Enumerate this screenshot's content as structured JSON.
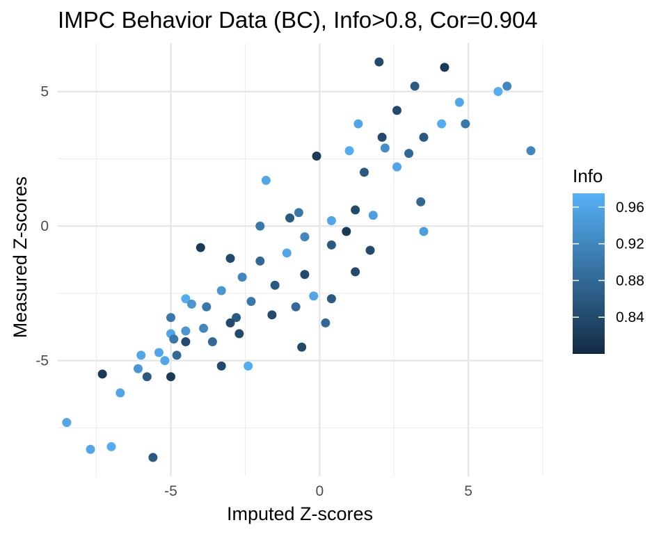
{
  "chart_data": {
    "type": "scatter",
    "title": "IMPC Behavior Data (BC), Info>0.8, Cor=0.904",
    "xlabel": "Imputed Z-scores",
    "ylabel": "Measured Z-scores",
    "xlim": [
      -8.8,
      7.5
    ],
    "ylim": [
      -9.3,
      6.8
    ],
    "x_ticks": [
      -5,
      0,
      5
    ],
    "y_ticks": [
      -5,
      0,
      5
    ],
    "x_tick_labels": [
      "-5",
      "0",
      "5"
    ],
    "y_tick_labels": [
      "-5",
      "0",
      "5"
    ],
    "grid": true,
    "legend": {
      "title": "Info",
      "position": "right",
      "color_min": "#132B43",
      "color_max": "#56B1F7",
      "range": [
        0.8,
        0.975
      ],
      "ticks": [
        0.84,
        0.88,
        0.92,
        0.96
      ],
      "tick_labels": [
        "0.84",
        "0.88",
        "0.92",
        "0.96"
      ]
    },
    "points": [
      {
        "x": 2.0,
        "y": 6.1,
        "info": 0.84
      },
      {
        "x": 4.2,
        "y": 5.9,
        "info": 0.82
      },
      {
        "x": 6.3,
        "y": 5.2,
        "info": 0.92
      },
      {
        "x": 6.0,
        "y": 5.0,
        "info": 0.97
      },
      {
        "x": 3.2,
        "y": 5.2,
        "info": 0.86
      },
      {
        "x": 4.7,
        "y": 4.6,
        "info": 0.96
      },
      {
        "x": 2.6,
        "y": 4.3,
        "info": 0.84
      },
      {
        "x": 4.9,
        "y": 3.8,
        "info": 0.9
      },
      {
        "x": 4.1,
        "y": 3.8,
        "info": 0.97
      },
      {
        "x": 1.3,
        "y": 3.8,
        "info": 0.96
      },
      {
        "x": 7.1,
        "y": 2.8,
        "info": 0.92
      },
      {
        "x": 3.5,
        "y": 3.3,
        "info": 0.86
      },
      {
        "x": 1.0,
        "y": 2.8,
        "info": 0.97
      },
      {
        "x": 2.1,
        "y": 3.3,
        "info": 0.84
      },
      {
        "x": 2.2,
        "y": 2.9,
        "info": 0.93
      },
      {
        "x": 3.0,
        "y": 2.7,
        "info": 0.88
      },
      {
        "x": -0.1,
        "y": 2.6,
        "info": 0.82
      },
      {
        "x": 2.6,
        "y": 2.2,
        "info": 0.96
      },
      {
        "x": 1.5,
        "y": 2.0,
        "info": 0.86
      },
      {
        "x": -1.8,
        "y": 1.7,
        "info": 0.96
      },
      {
        "x": 3.4,
        "y": 0.9,
        "info": 0.88
      },
      {
        "x": 3.5,
        "y": -0.2,
        "info": 0.95
      },
      {
        "x": 1.2,
        "y": 0.6,
        "info": 0.84
      },
      {
        "x": -0.7,
        "y": 0.5,
        "info": 0.9
      },
      {
        "x": 0.4,
        "y": 0.2,
        "info": 0.96
      },
      {
        "x": -1.0,
        "y": 0.3,
        "info": 0.86
      },
      {
        "x": -2.0,
        "y": 0.0,
        "info": 0.9
      },
      {
        "x": 1.8,
        "y": 0.4,
        "info": 0.95
      },
      {
        "x": 0.9,
        "y": -0.2,
        "info": 0.82
      },
      {
        "x": -0.5,
        "y": -0.4,
        "info": 0.92
      },
      {
        "x": -4.0,
        "y": -0.8,
        "info": 0.82
      },
      {
        "x": -3.0,
        "y": -1.2,
        "info": 0.84
      },
      {
        "x": -2.0,
        "y": -1.3,
        "info": 0.88
      },
      {
        "x": -1.1,
        "y": -1.0,
        "info": 0.96
      },
      {
        "x": 0.4,
        "y": -0.7,
        "info": 0.86
      },
      {
        "x": 1.7,
        "y": -0.9,
        "info": 0.84
      },
      {
        "x": -2.6,
        "y": -1.9,
        "info": 0.92
      },
      {
        "x": -1.5,
        "y": -2.2,
        "info": 0.86
      },
      {
        "x": -0.5,
        "y": -1.8,
        "info": 0.84
      },
      {
        "x": 1.2,
        "y": -1.7,
        "info": 0.84
      },
      {
        "x": -3.3,
        "y": -2.4,
        "info": 0.94
      },
      {
        "x": -2.3,
        "y": -2.8,
        "info": 0.9
      },
      {
        "x": -0.2,
        "y": -2.6,
        "info": 0.96
      },
      {
        "x": 0.4,
        "y": -2.7,
        "info": 0.86
      },
      {
        "x": -4.5,
        "y": -2.7,
        "info": 0.97
      },
      {
        "x": -4.3,
        "y": -2.9,
        "info": 0.94
      },
      {
        "x": -3.8,
        "y": -3.0,
        "info": 0.9
      },
      {
        "x": -2.8,
        "y": -3.4,
        "info": 0.86
      },
      {
        "x": -1.6,
        "y": -3.3,
        "info": 0.84
      },
      {
        "x": -0.8,
        "y": -3.0,
        "info": 0.88
      },
      {
        "x": -5.0,
        "y": -3.4,
        "info": 0.9
      },
      {
        "x": -3.9,
        "y": -3.8,
        "info": 0.92
      },
      {
        "x": -3.0,
        "y": -3.6,
        "info": 0.84
      },
      {
        "x": 0.2,
        "y": -3.6,
        "info": 0.88
      },
      {
        "x": -4.5,
        "y": -3.9,
        "info": 0.94
      },
      {
        "x": -5.0,
        "y": -4.0,
        "info": 0.96
      },
      {
        "x": -3.6,
        "y": -4.3,
        "info": 0.88
      },
      {
        "x": -2.7,
        "y": -4.0,
        "info": 0.84
      },
      {
        "x": -4.5,
        "y": -4.3,
        "info": 0.84
      },
      {
        "x": -4.9,
        "y": -4.2,
        "info": 0.9
      },
      {
        "x": -0.6,
        "y": -4.5,
        "info": 0.84
      },
      {
        "x": -5.4,
        "y": -4.7,
        "info": 0.96
      },
      {
        "x": -6.0,
        "y": -4.8,
        "info": 0.96
      },
      {
        "x": -4.8,
        "y": -4.8,
        "info": 0.88
      },
      {
        "x": -5.2,
        "y": -5.0,
        "info": 0.96
      },
      {
        "x": -3.3,
        "y": -5.2,
        "info": 0.84
      },
      {
        "x": -2.4,
        "y": -5.2,
        "info": 0.97
      },
      {
        "x": -6.1,
        "y": -5.3,
        "info": 0.94
      },
      {
        "x": -7.3,
        "y": -5.5,
        "info": 0.82
      },
      {
        "x": -5.8,
        "y": -5.6,
        "info": 0.86
      },
      {
        "x": -5.0,
        "y": -5.6,
        "info": 0.82
      },
      {
        "x": -6.7,
        "y": -6.2,
        "info": 0.96
      },
      {
        "x": -8.5,
        "y": -7.3,
        "info": 0.96
      },
      {
        "x": -7.7,
        "y": -8.3,
        "info": 0.96
      },
      {
        "x": -7.0,
        "y": -8.2,
        "info": 0.97
      },
      {
        "x": -5.6,
        "y": -8.6,
        "info": 0.86
      }
    ]
  }
}
